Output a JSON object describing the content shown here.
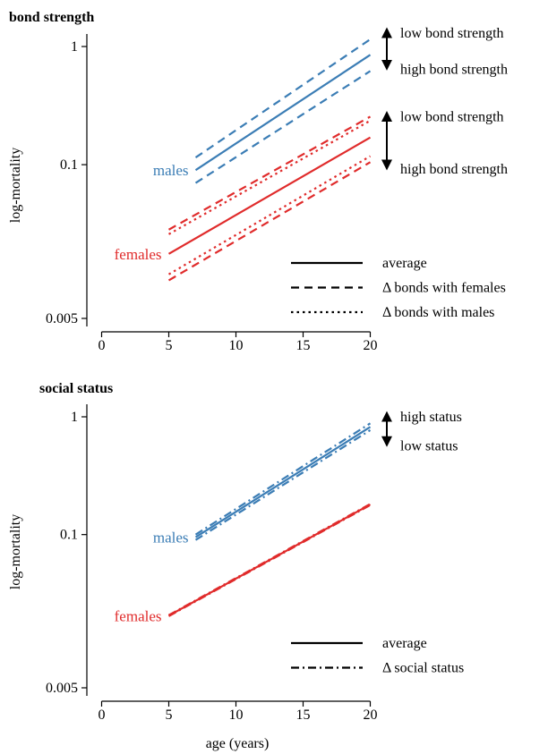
{
  "colors": {
    "males": "#3b7db5",
    "females": "#e02b2b",
    "ink": "#000000"
  },
  "chart_data": [
    {
      "type": "line",
      "title": "bond strength",
      "xlabel": "",
      "ylabel": "log-mortality",
      "xlim": [
        -1,
        21
      ],
      "ylim": [
        0.005,
        1.5
      ],
      "yscale": "log",
      "x_ticks": [
        0,
        5,
        10,
        15,
        20
      ],
      "y_ticks": [
        0.005,
        0.1,
        1
      ],
      "y_tick_labels": [
        "0.005",
        "0.1",
        "1"
      ],
      "group_labels": [
        {
          "text": "males",
          "color_key": "males",
          "anchor_x": 7,
          "anchor_y": 0.09
        },
        {
          "text": "females",
          "color_key": "females",
          "anchor_x": 5,
          "anchor_y": 0.0176
        }
      ],
      "series": [
        {
          "group": "males",
          "style": "average",
          "x": [
            7,
            20
          ],
          "y": [
            0.09,
            0.85
          ]
        },
        {
          "group": "males",
          "style": "bonds_females",
          "x": [
            7,
            20
          ],
          "y": [
            0.115,
            1.15
          ]
        },
        {
          "group": "males",
          "style": "bonds_females",
          "x": [
            7,
            20
          ],
          "y": [
            0.07,
            0.62
          ]
        },
        {
          "group": "females",
          "style": "average",
          "x": [
            5,
            20
          ],
          "y": [
            0.0176,
            0.17
          ]
        },
        {
          "group": "females",
          "style": "bonds_females",
          "x": [
            5,
            20
          ],
          "y": [
            0.0282,
            0.255
          ]
        },
        {
          "group": "females",
          "style": "bonds_females",
          "x": [
            5,
            20
          ],
          "y": [
            0.0105,
            0.105
          ]
        },
        {
          "group": "females",
          "style": "bonds_males",
          "x": [
            5,
            20
          ],
          "y": [
            0.0258,
            0.236
          ]
        },
        {
          "group": "females",
          "style": "bonds_males",
          "x": [
            5,
            20
          ],
          "y": [
            0.0118,
            0.118
          ]
        }
      ],
      "annotations": [
        {
          "top": "low bond strength",
          "bottom": "high bond strength",
          "y_top": 1.3,
          "y_bottom": 0.7
        },
        {
          "top": "low bond strength",
          "bottom": "high bond strength",
          "y_top": 0.255,
          "y_bottom": 0.1
        }
      ],
      "legend": {
        "placement": "bottom-right",
        "entries": [
          {
            "label": "average",
            "style": "average"
          },
          {
            "label": "Δ bonds with females",
            "style": "bonds_females"
          },
          {
            "label": "Δ bonds with males",
            "style": "bonds_males"
          }
        ]
      }
    },
    {
      "type": "line",
      "title": "social status",
      "xlabel": "age (years)",
      "ylabel": "log-mortality",
      "xlim": [
        -1,
        21
      ],
      "ylim": [
        0.005,
        1.5
      ],
      "yscale": "log",
      "x_ticks": [
        0,
        5,
        10,
        15,
        20
      ],
      "y_ticks": [
        0.005,
        0.1,
        1
      ],
      "y_tick_labels": [
        "0.005",
        "0.1",
        "1"
      ],
      "group_labels": [
        {
          "text": "males",
          "color_key": "males",
          "anchor_x": 7,
          "anchor_y": 0.095
        },
        {
          "text": "females",
          "color_key": "females",
          "anchor_x": 5,
          "anchor_y": 0.0205
        }
      ],
      "series": [
        {
          "group": "males",
          "style": "average",
          "x": [
            7,
            20
          ],
          "y": [
            0.095,
            0.82
          ]
        },
        {
          "group": "males",
          "style": "social_status",
          "x": [
            7,
            20
          ],
          "y": [
            0.1,
            0.88
          ]
        },
        {
          "group": "males",
          "style": "social_status",
          "x": [
            7,
            20
          ],
          "y": [
            0.09,
            0.77
          ]
        },
        {
          "group": "females",
          "style": "average",
          "x": [
            5,
            20
          ],
          "y": [
            0.0205,
            0.18
          ]
        },
        {
          "group": "females",
          "style": "social_status",
          "x": [
            5,
            20
          ],
          "y": [
            0.0207,
            0.182
          ]
        },
        {
          "group": "females",
          "style": "social_status",
          "x": [
            5,
            20
          ],
          "y": [
            0.0203,
            0.178
          ]
        }
      ],
      "annotations": [
        {
          "top": "high status",
          "bottom": "low status",
          "y_top": 1.0,
          "y_bottom": 0.62
        }
      ],
      "legend": {
        "placement": "bottom-right",
        "entries": [
          {
            "label": "average",
            "style": "average"
          },
          {
            "label": "Δ social status",
            "style": "social_status"
          }
        ]
      }
    }
  ]
}
